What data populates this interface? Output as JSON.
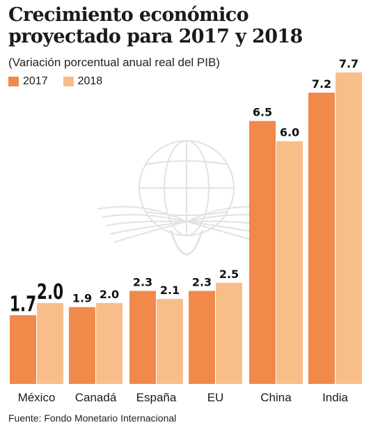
{
  "colors": {
    "series_2017": "#f0894a",
    "series_2018": "#f8be8a",
    "watermark": "#e2e2e2"
  },
  "watermark_icon": "eagle-globe-seal-icon",
  "chart_data": {
    "type": "bar",
    "title": "Crecimiento económico proyectado para 2017 y 2018",
    "subtitle": "(Variación porcentual anual real del PIB)",
    "categories": [
      "México",
      "Canadá",
      "España",
      "EU",
      "China",
      "India"
    ],
    "series": [
      {
        "name": "2017",
        "values": [
          1.7,
          1.9,
          2.3,
          2.3,
          6.5,
          7.2
        ],
        "labels": [
          "1.7",
          "1.9",
          "2.3",
          "2.3",
          "6.5",
          "7.2"
        ]
      },
      {
        "name": "2018",
        "values": [
          2.0,
          2.0,
          2.1,
          2.5,
          6.0,
          7.7
        ],
        "labels": [
          "2.0",
          "2.0",
          "2.1",
          "2.5",
          "6.0",
          "7.7"
        ]
      }
    ],
    "ylim": [
      0,
      8
    ],
    "grid": false,
    "legend_position": "top-left",
    "emphasized_category": "México",
    "source": "Fuente: Fondo Monetario Internacional"
  }
}
